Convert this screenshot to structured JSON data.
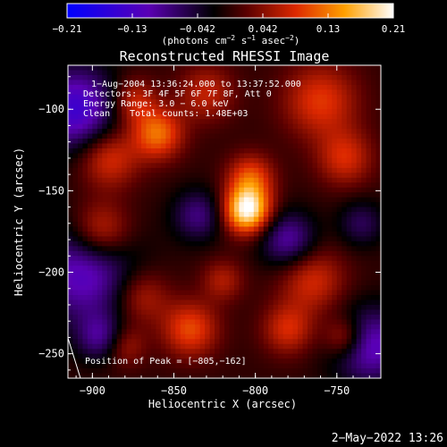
{
  "chart_data": {
    "type": "heatmap",
    "title": "Reconstructed RHESSI Image",
    "xlabel": "Heliocentric X (arcsec)",
    "ylabel": "Heliocentric Y (arcsec)",
    "xlim": [
      -915,
      -723
    ],
    "ylim": [
      -265,
      -73
    ],
    "xticks": [
      -900,
      -850,
      -800,
      -750
    ],
    "yticks": [
      -100,
      -150,
      -200,
      -250
    ],
    "xtick_labels": [
      "−900",
      "−850",
      "−800",
      "−750"
    ],
    "ytick_labels": [
      "−100",
      "−150",
      "−200",
      "−250"
    ],
    "colorbar": {
      "ticks": [
        "−0.21",
        "−0.13",
        "−0.042",
        "0.042",
        "0.13",
        "0.21"
      ],
      "range": [
        -0.21,
        0.21
      ],
      "units_prefix": "(photons cm",
      "units_exp1": "−2",
      "units_mid": " s",
      "units_exp2": "−1",
      "units_mid2": " asec",
      "units_exp3": "−2",
      "units_suffix": ")"
    },
    "annotations": [
      "1−Aug−2004 13:36:24.000 to 13:37:52.000",
      "Detectors: 3F 4F 5F 6F 7F 8F, Att 0",
      "Energy Range: 3.0 − 6.0 keV",
      "Clean",
      "Total counts: 1.48E+03"
    ],
    "peak_label": "Position of Peak = [−805,−162]",
    "peak": [
      -805,
      -162
    ],
    "sources": [
      {
        "x": -805,
        "y": -162,
        "amp": 0.21,
        "r": 10
      },
      {
        "x": -803,
        "y": -142,
        "amp": 0.1,
        "r": 10
      },
      {
        "x": -860,
        "y": -115,
        "amp": 0.12,
        "r": 11
      },
      {
        "x": -890,
        "y": -130,
        "amp": 0.09,
        "r": 13
      },
      {
        "x": -875,
        "y": -95,
        "amp": 0.08,
        "r": 10
      },
      {
        "x": -760,
        "y": -95,
        "amp": 0.09,
        "r": 16
      },
      {
        "x": -745,
        "y": -130,
        "amp": 0.08,
        "r": 12
      },
      {
        "x": -830,
        "y": -90,
        "amp": 0.07,
        "r": 12
      },
      {
        "x": -895,
        "y": -175,
        "amp": 0.1,
        "r": 13
      },
      {
        "x": -870,
        "y": -215,
        "amp": 0.07,
        "r": 12
      },
      {
        "x": -765,
        "y": -205,
        "amp": 0.08,
        "r": 14
      },
      {
        "x": -840,
        "y": -235,
        "amp": 0.1,
        "r": 12
      },
      {
        "x": -780,
        "y": -235,
        "amp": 0.08,
        "r": 11
      },
      {
        "x": -745,
        "y": -240,
        "amp": 0.09,
        "r": 9
      },
      {
        "x": -880,
        "y": -245,
        "amp": 0.06,
        "r": 9
      },
      {
        "x": -820,
        "y": -205,
        "amp": 0.06,
        "r": 9
      },
      {
        "x": -905,
        "y": -200,
        "amp": -0.12,
        "r": 22
      },
      {
        "x": -910,
        "y": -100,
        "amp": -0.14,
        "r": 18
      },
      {
        "x": -730,
        "y": -245,
        "amp": -0.12,
        "r": 16
      },
      {
        "x": -780,
        "y": -180,
        "amp": -0.1,
        "r": 12
      },
      {
        "x": -835,
        "y": -165,
        "amp": -0.08,
        "r": 11
      },
      {
        "x": -895,
        "y": -240,
        "amp": -0.08,
        "r": 10
      },
      {
        "x": -735,
        "y": -170,
        "amp": -0.06,
        "r": 10
      }
    ]
  },
  "footer": {
    "timestamp": "2−May−2022 13:26"
  }
}
